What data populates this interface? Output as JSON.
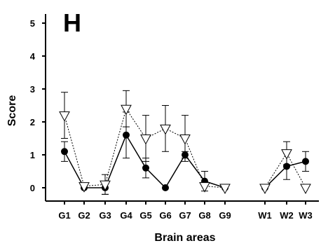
{
  "chart_data": {
    "type": "line",
    "panel_label": "H",
    "xlabel": "Brain areas",
    "ylabel": "Score",
    "ylim": [
      0,
      5
    ],
    "yticks": [
      0,
      1,
      2,
      3,
      4,
      5
    ],
    "categories": [
      "G1",
      "G2",
      "G3",
      "G4",
      "G5",
      "G6",
      "G7",
      "G8",
      "G9",
      "W1",
      "W2",
      "W3"
    ],
    "groups": [
      [
        "G1",
        "G2",
        "G3",
        "G4",
        "G5",
        "G6",
        "G7",
        "G8",
        "G9"
      ],
      [
        "W1",
        "W2",
        "W3"
      ]
    ],
    "grid": false,
    "series": [
      {
        "marker": "filled-circle",
        "line_style": "solid",
        "color": "#000000",
        "values": [
          1.1,
          0.0,
          0.0,
          1.6,
          0.6,
          0.0,
          1.0,
          0.2,
          0.0,
          0.0,
          0.65,
          0.8
        ],
        "errors": [
          0.3,
          0.0,
          0.2,
          0.7,
          0.3,
          0.0,
          0.1,
          0.3,
          0.0,
          0.0,
          0.4,
          0.3
        ]
      },
      {
        "marker": "open-triangle-down",
        "line_style": "dotted",
        "color": "#000000",
        "values": [
          2.2,
          0.05,
          0.1,
          2.4,
          1.5,
          1.8,
          1.5,
          0.05,
          0.0,
          0.0,
          1.05,
          0.0
        ],
        "errors": [
          0.7,
          0.0,
          0.3,
          0.55,
          0.7,
          0.7,
          0.7,
          0.0,
          0.0,
          0.0,
          0.35,
          0.0
        ]
      }
    ]
  }
}
